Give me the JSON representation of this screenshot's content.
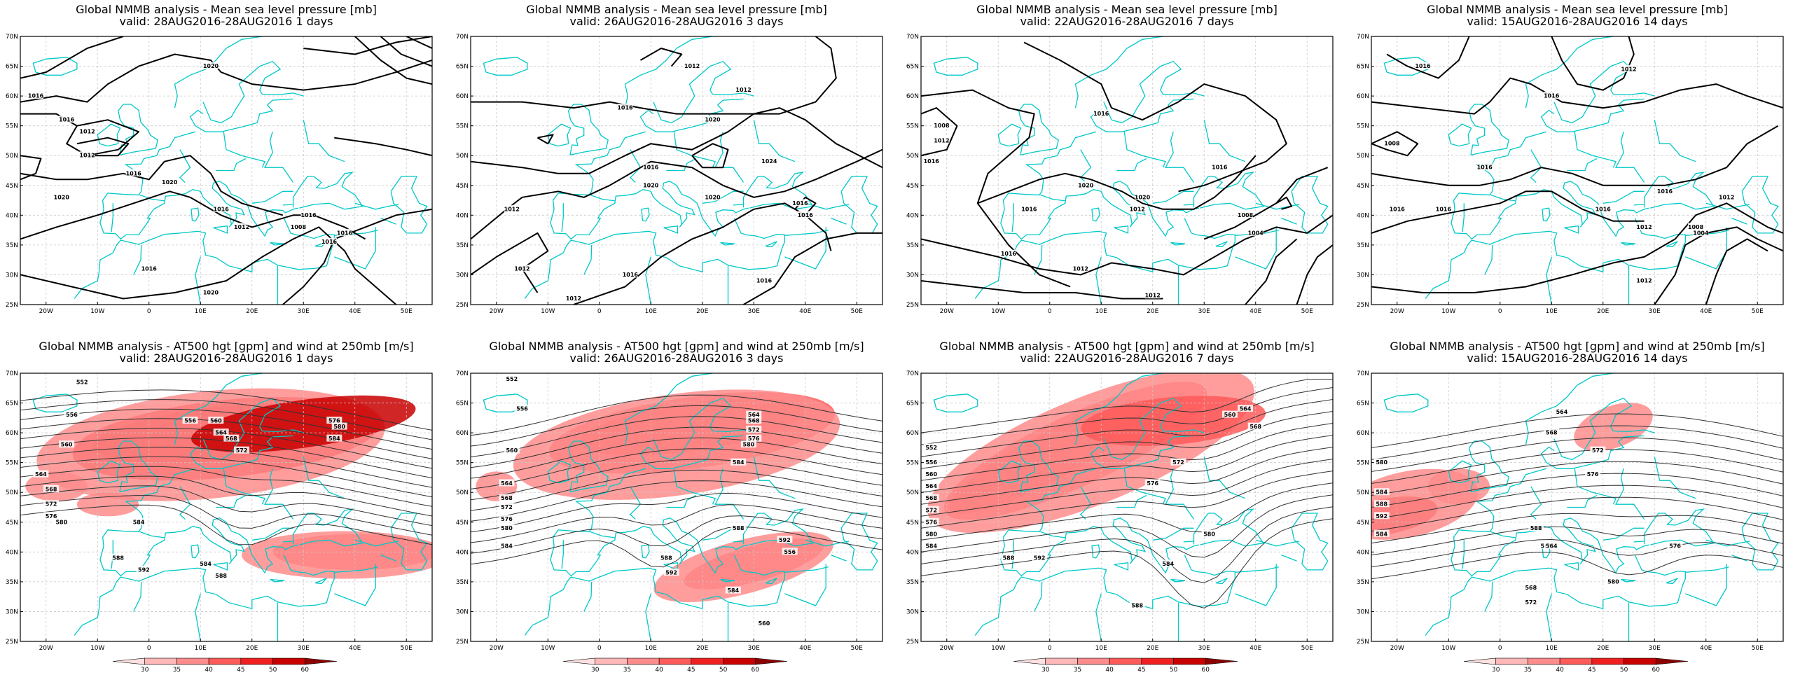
{
  "panels": [
    {
      "row": 0,
      "col": 0,
      "title": "Global NMMB analysis - Mean sea level pressure [mb]",
      "subtitle": "valid: 28AUG2016-28AUG2016   1 days",
      "contour_labels": [
        "1020",
        "1016",
        "1016",
        "1012",
        "1012",
        "1016",
        "1020",
        "1020",
        "1016",
        "1012",
        "1016",
        "1008",
        "1016",
        "1016",
        "1016",
        "1020"
      ],
      "jet_level": 0
    },
    {
      "row": 0,
      "col": 1,
      "title": "Global NMMB analysis - Mean sea level pressure [mb]",
      "subtitle": "valid: 26AUG2016-28AUG2016   3 days",
      "contour_labels": [
        "1012",
        "1012",
        "1016",
        "1020",
        "1024",
        "1016",
        "1020",
        "1020",
        "1016",
        "1016",
        "1012",
        "1016",
        "1012",
        "1016",
        "1012"
      ],
      "jet_level": 0
    },
    {
      "row": 0,
      "col": 2,
      "title": "Global NMMB analysis - Mean sea level pressure [mb]",
      "subtitle": "valid: 22AUG2016-28AUG2016   7 days",
      "contour_labels": [
        "1008",
        "1012",
        "1016",
        "1016",
        "1020",
        "1020",
        "1016",
        "1012",
        "1008",
        "1004",
        "1016",
        "1016",
        "1012",
        "1012"
      ],
      "jet_level": 0
    },
    {
      "row": 0,
      "col": 3,
      "title": "Global NMMB analysis - Mean sea level pressure [mb]",
      "subtitle": "valid: 15AUG2016-28AUG2016   14 days",
      "contour_labels": [
        "1016",
        "1012",
        "1016",
        "1016",
        "1008",
        "1016",
        "1016",
        "1016",
        "1012",
        "1008",
        "1004",
        "1012",
        "1016",
        "1012"
      ],
      "jet_level": 0
    },
    {
      "row": 1,
      "col": 0,
      "title": "Global NMMB analysis - AT500 hgt [gpm] and wind at 250mb [m/s]",
      "subtitle": "valid: 28AUG2016-28AUG2016   1 days",
      "contour_labels": [
        "552",
        "556",
        "560",
        "564",
        "568",
        "572",
        "576",
        "580",
        "584",
        "588",
        "592",
        "584",
        "588",
        "556",
        "560",
        "564",
        "568",
        "572",
        "576",
        "580",
        "584"
      ],
      "jet_level": 3
    },
    {
      "row": 1,
      "col": 1,
      "title": "Global NMMB analysis - AT500 hgt [gpm] and wind at 250mb [m/s]",
      "subtitle": "valid: 26AUG2016-28AUG2016   3 days",
      "contour_labels": [
        "552",
        "556",
        "560",
        "564",
        "568",
        "572",
        "576",
        "580",
        "584",
        "588",
        "592",
        "584",
        "588",
        "592",
        "556",
        "560",
        "564",
        "568",
        "572",
        "576",
        "580",
        "584"
      ],
      "jet_level": 2
    },
    {
      "row": 1,
      "col": 2,
      "title": "Global NMMB analysis - AT500 hgt [gpm] and wind at 250mb [m/s]",
      "subtitle": "valid: 22AUG2016-28AUG2016   7 days",
      "contour_labels": [
        "552",
        "556",
        "560",
        "564",
        "568",
        "572",
        "576",
        "580",
        "584",
        "588",
        "592",
        "584",
        "588",
        "560",
        "564",
        "568",
        "572",
        "576",
        "580"
      ],
      "jet_level": 2
    },
    {
      "row": 1,
      "col": 3,
      "title": "Global NMMB analysis - AT500 hgt [gpm] and wind at 250mb [m/s]",
      "subtitle": "valid: 15AUG2016-28AUG2016   14 days",
      "contour_labels": [
        "564",
        "568",
        "572",
        "576",
        "580",
        "584",
        "588",
        "592",
        "584",
        "588",
        "560",
        "564",
        "568",
        "572",
        "576",
        "580"
      ],
      "jet_level": 1
    }
  ],
  "lat_labels": [
    "70N",
    "65N",
    "60N",
    "55N",
    "50N",
    "45N",
    "40N",
    "35N",
    "30N",
    "25N"
  ],
  "lon_labels": [
    "20W",
    "10W",
    "0",
    "10E",
    "20E",
    "30E",
    "40E",
    "50E"
  ],
  "colorbar": {
    "ticks": [
      "30",
      "35",
      "40",
      "45",
      "50",
      "60"
    ],
    "colors": [
      "#ffe0e0",
      "#ffb8b8",
      "#ff8c8c",
      "#ff5a5a",
      "#f02020",
      "#c80000",
      "#8c0000"
    ]
  },
  "colors": {
    "coast": "#00c8c8",
    "isobar": "#000000",
    "hgt": "#333333"
  }
}
